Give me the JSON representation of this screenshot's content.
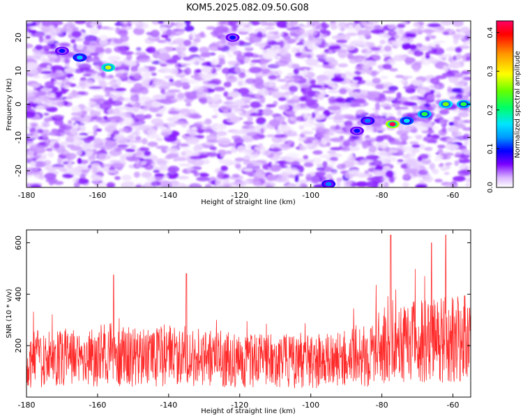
{
  "title": "KOM5.2025.082.09.50.G08",
  "chart_data": [
    {
      "type": "heatmap",
      "xlabel": "Height of straight line (km)",
      "ylabel": "Frequency (Hz)",
      "xlim": [
        -180,
        -55
      ],
      "ylim": [
        -25,
        25
      ],
      "xticks": [
        -180,
        -160,
        -140,
        -120,
        -100,
        -80,
        -60
      ],
      "yticks": [
        -20,
        -10,
        0,
        10,
        20
      ],
      "colorbar": {
        "label": "Normalized spectral amplitude",
        "range": [
          0.0,
          0.43
        ],
        "ticks": [
          0.0,
          0.1,
          0.2,
          0.3,
          0.4
        ],
        "colormap": [
          "#ffffff",
          "#d9b3ff",
          "#7a00ff",
          "#0000ff",
          "#0099ff",
          "#00e5ff",
          "#00ff66",
          "#66ff00",
          "#ffff00",
          "#ff9900",
          "#ff0000",
          "#ff0066"
        ]
      },
      "hotspots": [
        {
          "x": -165,
          "y": 14,
          "amplitude": 0.18
        },
        {
          "x": -157,
          "y": 11,
          "amplitude": 0.3
        },
        {
          "x": -170,
          "y": 16,
          "amplitude": 0.12
        },
        {
          "x": -122,
          "y": 20,
          "amplitude": 0.12
        },
        {
          "x": -95,
          "y": -24,
          "amplitude": 0.15
        },
        {
          "x": -77,
          "y": -6,
          "amplitude": 0.42
        },
        {
          "x": -73,
          "y": -5,
          "amplitude": 0.2
        },
        {
          "x": -68,
          "y": -3,
          "amplitude": 0.25
        },
        {
          "x": -62,
          "y": 0,
          "amplitude": 0.28
        },
        {
          "x": -57,
          "y": 0,
          "amplitude": 0.25
        },
        {
          "x": -84,
          "y": -5,
          "amplitude": 0.15
        },
        {
          "x": -87,
          "y": -8,
          "amplitude": 0.12
        }
      ]
    },
    {
      "type": "line",
      "xlabel": "Height of straight line (km)",
      "ylabel": "SNR (10 * v/v)",
      "xlim": [
        -180,
        -55
      ],
      "ylim": [
        0,
        650
      ],
      "xticks": [
        -180,
        -160,
        -140,
        -120,
        -100,
        -80,
        -60
      ],
      "yticks": [
        200,
        400,
        600
      ],
      "color": "#ff2a2a",
      "series": [
        {
          "x": [
            -180,
            -176,
            -172,
            -168,
            -164,
            -160,
            -156,
            -152,
            -148,
            -144,
            -140,
            -136,
            -132,
            -128,
            -124,
            -120,
            -116,
            -112,
            -108,
            -104,
            -100,
            -96,
            -92,
            -88,
            -84,
            -80,
            -77,
            -74,
            -70,
            -66,
            -62,
            -58,
            -55
          ],
          "values": [
            140,
            150,
            145,
            155,
            150,
            160,
            165,
            160,
            150,
            155,
            165,
            160,
            155,
            150,
            150,
            145,
            140,
            140,
            145,
            135,
            140,
            140,
            145,
            150,
            160,
            210,
            240,
            230,
            220,
            215,
            225,
            230,
            240
          ],
          "peaks": [
            {
              "x": -155.5,
              "y": 475
            },
            {
              "x": -135,
              "y": 480
            },
            {
              "x": -77.5,
              "y": 630
            },
            {
              "x": -66,
              "y": 600
            },
            {
              "x": -62,
              "y": 630
            }
          ]
        }
      ]
    }
  ]
}
